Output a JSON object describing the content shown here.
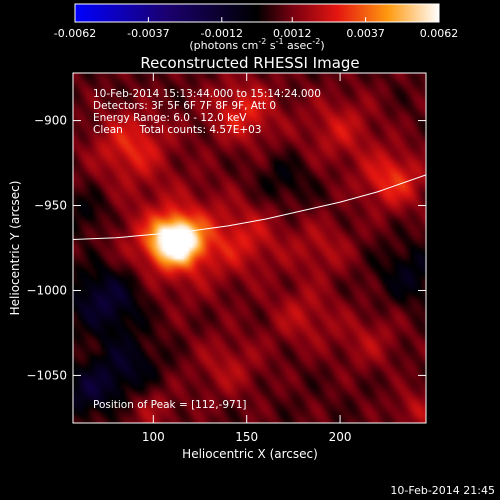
{
  "colorbar": {
    "tick_labels": [
      "-0.0062",
      "-0.0037",
      "-0.0012",
      "0.0012",
      "0.0037",
      "0.0062"
    ],
    "tick_values": [
      -0.0062,
      -0.0037,
      -0.0012,
      0.0012,
      0.0037,
      0.0062
    ],
    "min": -0.0062,
    "max": 0.0062,
    "unit_main": "(photons cm",
    "unit_exp1": "-2",
    "unit_mid": " s",
    "unit_exp2": "-1",
    "unit_mid2": " asec",
    "unit_exp3": "-2",
    "unit_close": ")"
  },
  "chart": {
    "title": "Reconstructed RHESSI Image",
    "info_lines": [
      "10-Feb-2014 15:13:44.000 to 15:14:24.000",
      "Detectors: 3F 5F 6F 7F 8F 9F, Att 0",
      "Energy Range: 6.0 - 12.0 keV",
      "Clean     Total counts: 4.57E+03"
    ],
    "peak_label": "Position of Peak = [112,-971]",
    "footer_date": "10-Feb-2014 21:45"
  },
  "chart_data": {
    "type": "heatmap",
    "title": "Reconstructed RHESSI Image",
    "xlabel": "Heliocentric X (arcsec)",
    "ylabel": "Heliocentric Y (arcsec)",
    "xlim": [
      57,
      246
    ],
    "ylim": [
      -1078,
      -872
    ],
    "x_ticks": [
      100,
      150,
      200
    ],
    "y_ticks": [
      -1050,
      -1000,
      -950,
      -900
    ],
    "x_tick_labels": [
      "100",
      "150",
      "200"
    ],
    "y_tick_labels": [
      "−1050",
      "−1000",
      "−950",
      "−900"
    ],
    "peak": {
      "x": 112,
      "y": -971
    },
    "limb_curve": {
      "x": [
        57,
        80,
        100,
        120,
        140,
        160,
        180,
        200,
        220,
        246
      ],
      "y": [
        -970,
        -969,
        -967,
        -965,
        -962,
        -958,
        -953,
        -948,
        -942,
        -932
      ]
    },
    "sources": [
      {
        "x": 112,
        "y": -971,
        "amp": 0.0062,
        "sigma": 9
      },
      {
        "x": 112,
        "y": -971,
        "amp": 0.0017,
        "sigma": 22
      },
      {
        "x": 88,
        "y": -915,
        "amp": 0.002,
        "sigma": 14
      },
      {
        "x": 148,
        "y": -895,
        "amp": 0.0019,
        "sigma": 13
      },
      {
        "x": 228,
        "y": -935,
        "amp": 0.0022,
        "sigma": 12
      },
      {
        "x": 200,
        "y": -905,
        "amp": 0.0014,
        "sigma": 14
      },
      {
        "x": 150,
        "y": -970,
        "amp": 0.0013,
        "sigma": 14
      },
      {
        "x": 190,
        "y": -975,
        "amp": 0.0011,
        "sigma": 12
      },
      {
        "x": 180,
        "y": -1015,
        "amp": 0.0012,
        "sigma": 13
      },
      {
        "x": 215,
        "y": -1030,
        "amp": 0.001,
        "sigma": 12
      },
      {
        "x": 140,
        "y": -1045,
        "amp": 0.0011,
        "sigma": 13
      },
      {
        "x": 100,
        "y": -1070,
        "amp": 0.0009,
        "sigma": 10
      },
      {
        "x": 240,
        "y": -1070,
        "amp": 0.0012,
        "sigma": 8
      },
      {
        "x": 75,
        "y": -1005,
        "amp": -0.0022,
        "sigma": 14
      },
      {
        "x": 85,
        "y": -1045,
        "amp": -0.0016,
        "sigma": 12
      },
      {
        "x": 65,
        "y": -1060,
        "amp": -0.0018,
        "sigma": 10
      },
      {
        "x": 238,
        "y": -990,
        "amp": -0.0013,
        "sigma": 12
      },
      {
        "x": 170,
        "y": -935,
        "amp": -0.0009,
        "sigma": 10
      },
      {
        "x": 65,
        "y": -955,
        "amp": -0.001,
        "sigma": 9
      }
    ],
    "color_range": [
      -0.0062,
      0.0062
    ],
    "grid": false
  }
}
